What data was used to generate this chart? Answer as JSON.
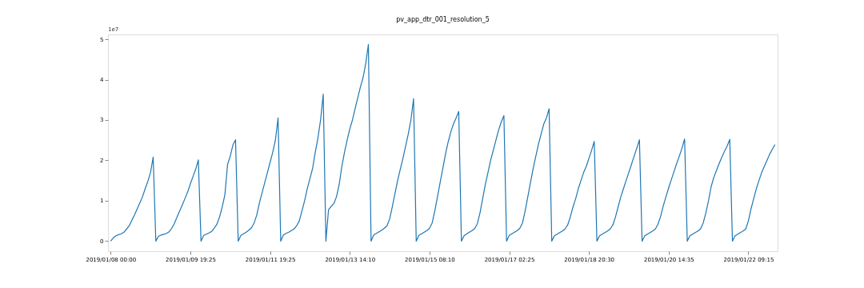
{
  "chart_data": {
    "type": "line",
    "title": "pv_app_dtr_001_resolution_5",
    "annotations": [
      "1e7"
    ],
    "ylim": [
      -0.25,
      5.12
    ],
    "yticks": [
      0,
      1,
      2,
      3,
      4,
      5
    ],
    "grid": false,
    "legend": false,
    "marker": "none",
    "line_style": "solid",
    "categories": [
      "2019/01/08 00:00",
      null,
      null,
      null,
      null,
      null,
      null,
      null,
      null,
      null,
      null,
      null,
      null,
      null,
      null,
      null,
      null,
      null,
      null,
      null,
      null,
      null,
      null,
      null,
      null,
      null,
      null,
      null,
      null,
      null,
      "2019/01/09 19:25",
      null,
      null,
      null,
      null,
      null,
      null,
      null,
      null,
      null,
      null,
      null,
      null,
      null,
      null,
      null,
      null,
      null,
      null,
      null,
      null,
      null,
      null,
      null,
      null,
      null,
      null,
      null,
      null,
      null,
      "2019/01/11 19:25",
      null,
      null,
      null,
      null,
      null,
      null,
      null,
      null,
      null,
      null,
      null,
      null,
      null,
      null,
      null,
      null,
      null,
      null,
      null,
      null,
      null,
      null,
      null,
      null,
      null,
      null,
      null,
      null,
      null,
      "2019/01/13 14:10",
      null,
      null,
      null,
      null,
      null,
      null,
      null,
      null,
      null,
      null,
      null,
      null,
      null,
      null,
      null,
      null,
      null,
      null,
      null,
      null,
      null,
      null,
      null,
      null,
      null,
      null,
      null,
      null,
      null,
      "2019/01/15 08:10",
      null,
      null,
      null,
      null,
      null,
      null,
      null,
      null,
      null,
      null,
      null,
      null,
      null,
      null,
      null,
      null,
      null,
      null,
      null,
      null,
      null,
      null,
      null,
      null,
      null,
      null,
      null,
      null,
      null,
      "2019/01/17 02:25",
      null,
      null,
      null,
      null,
      null,
      null,
      null,
      null,
      null,
      null,
      null,
      null,
      null,
      null,
      null,
      null,
      null,
      null,
      null,
      null,
      null,
      null,
      null,
      null,
      null,
      null,
      null,
      null,
      null,
      "2019/01/18 20:30",
      null,
      null,
      null,
      null,
      null,
      null,
      null,
      null,
      null,
      null,
      null,
      null,
      null,
      null,
      null,
      null,
      null,
      null,
      null,
      null,
      null,
      null,
      null,
      null,
      null,
      null,
      null,
      null,
      null,
      "2019/01/20 14:35",
      null,
      null,
      null,
      null,
      null,
      null,
      null,
      null,
      null,
      null,
      null,
      null,
      null,
      null,
      null,
      null,
      null,
      null,
      null,
      null,
      null,
      null,
      null,
      null,
      null,
      null,
      null,
      null,
      null,
      "2019/01/22 09:15",
      null,
      null,
      null,
      null,
      null,
      null,
      null,
      null,
      null,
      null
    ],
    "series": [
      {
        "color": "#1f77b4",
        "values": [
          0,
          0.08,
          0.13,
          0.16,
          0.18,
          0.22,
          0.3,
          0.38,
          0.52,
          0.65,
          0.8,
          0.95,
          1.1,
          1.3,
          1.48,
          1.7,
          2.08,
          0,
          0.12,
          0.15,
          0.17,
          0.19,
          0.23,
          0.32,
          0.44,
          0.6,
          0.75,
          0.9,
          1.06,
          1.22,
          1.42,
          1.6,
          1.78,
          2.01,
          0,
          0.14,
          0.17,
          0.2,
          0.24,
          0.32,
          0.42,
          0.6,
          0.85,
          1.15,
          1.9,
          2.1,
          2.38,
          2.51,
          0,
          0.14,
          0.18,
          0.22,
          0.27,
          0.33,
          0.45,
          0.65,
          0.95,
          1.2,
          1.45,
          1.7,
          1.95,
          2.2,
          2.5,
          3.05,
          0,
          0.15,
          0.19,
          0.22,
          0.26,
          0.3,
          0.38,
          0.5,
          0.75,
          1.0,
          1.3,
          1.55,
          1.8,
          2.2,
          2.55,
          3.0,
          3.64,
          0,
          0.78,
          0.86,
          0.93,
          1.1,
          1.4,
          1.85,
          2.2,
          2.5,
          2.78,
          3.0,
          3.28,
          3.55,
          3.82,
          4.05,
          4.4,
          4.87,
          0,
          0.15,
          0.19,
          0.23,
          0.27,
          0.32,
          0.38,
          0.55,
          0.85,
          1.18,
          1.5,
          1.78,
          2.05,
          2.35,
          2.65,
          3.0,
          3.53,
          0,
          0.14,
          0.18,
          0.22,
          0.26,
          0.32,
          0.45,
          0.75,
          1.1,
          1.45,
          1.8,
          2.15,
          2.45,
          2.7,
          2.9,
          3.05,
          3.21,
          0,
          0.13,
          0.18,
          0.22,
          0.26,
          0.31,
          0.43,
          0.7,
          1.05,
          1.4,
          1.7,
          2.0,
          2.25,
          2.5,
          2.75,
          2.95,
          3.11,
          0,
          0.14,
          0.18,
          0.22,
          0.26,
          0.32,
          0.45,
          0.75,
          1.1,
          1.45,
          1.8,
          2.1,
          2.4,
          2.65,
          2.9,
          3.05,
          3.28,
          0,
          0.13,
          0.17,
          0.21,
          0.25,
          0.3,
          0.4,
          0.6,
          0.85,
          1.05,
          1.3,
          1.5,
          1.7,
          1.85,
          2.05,
          2.25,
          2.47,
          0,
          0.13,
          0.17,
          0.21,
          0.25,
          0.3,
          0.4,
          0.6,
          0.85,
          1.1,
          1.3,
          1.5,
          1.7,
          1.9,
          2.1,
          2.3,
          2.51,
          0,
          0.13,
          0.17,
          0.21,
          0.25,
          0.3,
          0.42,
          0.62,
          0.88,
          1.1,
          1.32,
          1.52,
          1.72,
          1.92,
          2.1,
          2.3,
          2.53,
          0,
          0.13,
          0.17,
          0.21,
          0.25,
          0.3,
          0.45,
          0.7,
          1.0,
          1.35,
          1.58,
          1.75,
          1.92,
          2.08,
          2.22,
          2.35,
          2.52,
          0,
          0.13,
          0.17,
          0.21,
          0.25,
          0.3,
          0.5,
          0.8,
          1.05,
          1.3,
          1.5,
          1.7,
          1.85,
          2.0,
          2.15,
          2.27,
          2.39
        ]
      }
    ]
  }
}
